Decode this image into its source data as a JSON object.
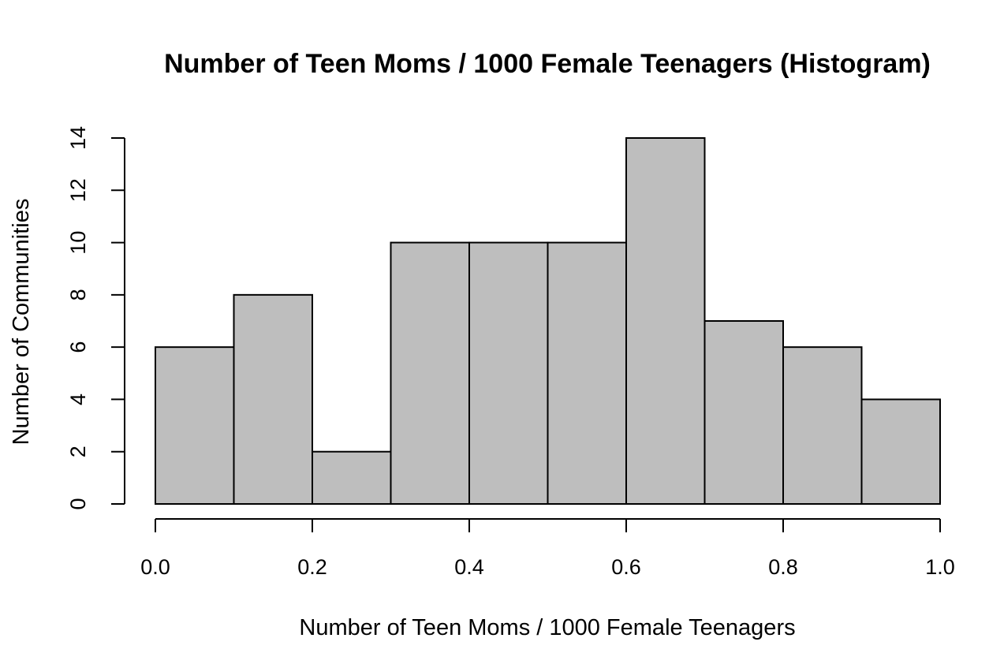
{
  "chart_data": {
    "type": "bar",
    "title": "Number of Teen Moms / 1000 Female Teenagers (Histogram)",
    "xlabel": "Number of Teen Moms / 1000 Female Teenagers",
    "ylabel": "Number of Communities",
    "bins": [
      {
        "start": 0.0,
        "end": 0.1,
        "value": 6
      },
      {
        "start": 0.1,
        "end": 0.2,
        "value": 8
      },
      {
        "start": 0.2,
        "end": 0.3,
        "value": 2
      },
      {
        "start": 0.3,
        "end": 0.4,
        "value": 10
      },
      {
        "start": 0.4,
        "end": 0.5,
        "value": 10
      },
      {
        "start": 0.5,
        "end": 0.6,
        "value": 10
      },
      {
        "start": 0.6,
        "end": 0.7,
        "value": 14
      },
      {
        "start": 0.7,
        "end": 0.8,
        "value": 7
      },
      {
        "start": 0.8,
        "end": 0.9,
        "value": 6
      },
      {
        "start": 0.9,
        "end": 1.0,
        "value": 4
      }
    ],
    "xlim": [
      0.0,
      1.0
    ],
    "ylim": [
      0,
      14
    ],
    "x_ticks": [
      "0.0",
      "0.2",
      "0.4",
      "0.6",
      "0.8",
      "1.0"
    ],
    "y_ticks": [
      "0",
      "2",
      "4",
      "6",
      "8",
      "10",
      "12",
      "14"
    ],
    "bar_color": "#bebebe",
    "grid": false,
    "legend": "none"
  }
}
